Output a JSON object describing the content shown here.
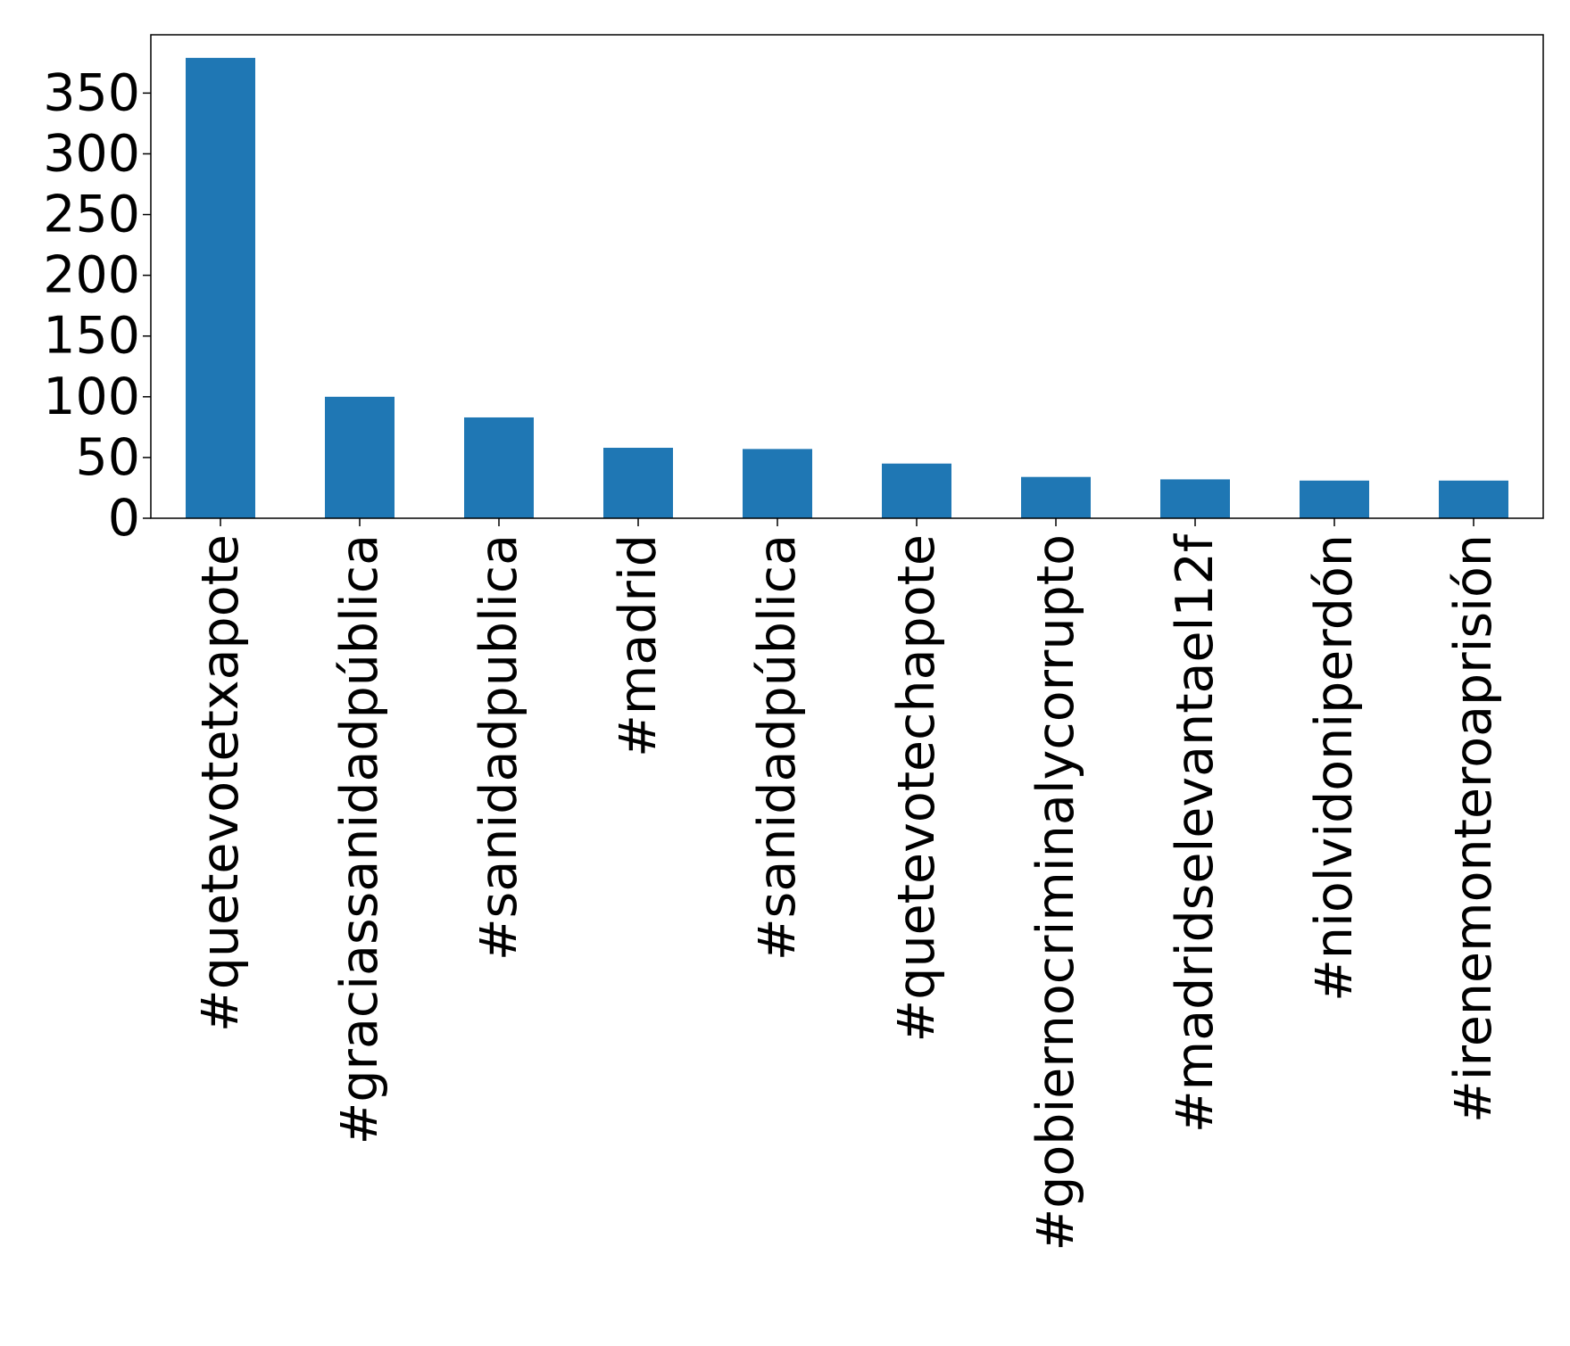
{
  "chart_data": {
    "type": "bar",
    "title": "",
    "xlabel": "",
    "ylabel": "",
    "categories": [
      "#quetevotetxapote",
      "#graciassanidadpública",
      "#sanidadpublica",
      "#madrid",
      "#sanidadpública",
      "#quetevotechapote",
      "#gobiernocriminalycorrupto",
      "#madridselevantael12f",
      "#niolvidoniperdón",
      "#irenemonteroaprisión"
    ],
    "values": [
      379,
      100,
      83,
      58,
      57,
      45,
      34,
      32,
      31,
      31
    ],
    "ylim": [
      0,
      398
    ],
    "yticks": [
      0,
      50,
      100,
      150,
      200,
      250,
      300,
      350
    ],
    "ytick_labels": [
      "0",
      "50",
      "100",
      "150",
      "200",
      "250",
      "300",
      "350"
    ],
    "bar_color": "#1f77b4",
    "grid": false,
    "legend": "none"
  }
}
